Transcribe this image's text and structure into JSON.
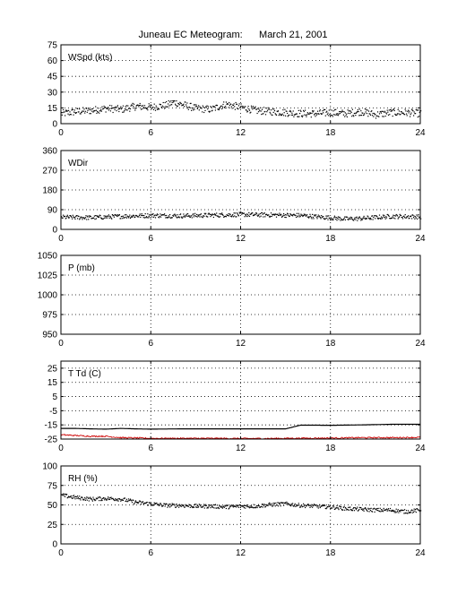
{
  "figure": {
    "title_left": "Juneau EC Meteogram:",
    "title_right": "March 21, 2001"
  },
  "chart_data": [
    {
      "type": "scatter",
      "label": "WSpd (kts)",
      "xlim": [
        0,
        24
      ],
      "ylim": [
        0,
        75
      ],
      "xticks": [
        0,
        6,
        12,
        18,
        24
      ],
      "yticks": [
        0,
        15,
        30,
        45,
        60,
        75
      ],
      "grid": true,
      "series": [
        {
          "color": "#000000",
          "x": [
            0,
            1,
            2,
            3,
            4,
            5,
            6,
            7,
            7.5,
            8,
            9,
            10,
            11,
            12,
            13,
            14,
            15,
            16,
            17,
            18,
            19,
            20,
            21,
            22,
            23,
            24
          ],
          "y": [
            10,
            12,
            13,
            15,
            14,
            17,
            16,
            18,
            21,
            19,
            15,
            14,
            19,
            16,
            13,
            12,
            11,
            10,
            10,
            11,
            10,
            12,
            9,
            11,
            11,
            10
          ]
        }
      ]
    },
    {
      "type": "scatter",
      "label": "WDir",
      "xlim": [
        0,
        24
      ],
      "ylim": [
        0,
        360
      ],
      "xticks": [
        0,
        6,
        12,
        18,
        24
      ],
      "yticks": [
        0,
        90,
        180,
        270,
        360
      ],
      "grid": true,
      "series": [
        {
          "color": "#000000",
          "x": [
            0,
            2,
            4,
            6,
            8,
            10,
            12,
            14,
            16,
            18,
            19,
            20,
            22,
            24
          ],
          "y": [
            58,
            56,
            62,
            66,
            64,
            67,
            70,
            68,
            66,
            55,
            50,
            52,
            62,
            60
          ]
        }
      ]
    },
    {
      "type": "line",
      "label": "P (mb)",
      "xlim": [
        0,
        24
      ],
      "ylim": [
        950,
        1050
      ],
      "xticks": [
        0,
        6,
        12,
        18,
        24
      ],
      "yticks": [
        950,
        975,
        1000,
        1025,
        1050
      ],
      "grid": true,
      "series": []
    },
    {
      "type": "line",
      "label": "T Td (C)",
      "xlim": [
        0,
        24
      ],
      "ylim": [
        -25,
        30
      ],
      "xticks": [
        0,
        6,
        12,
        18,
        24
      ],
      "yticks": [
        -25,
        -15,
        -5,
        5,
        15,
        25
      ],
      "grid": true,
      "series": [
        {
          "color": "#000000",
          "x": [
            0,
            1,
            2,
            3,
            4,
            5,
            6,
            8,
            10,
            12,
            14,
            15,
            15.5,
            16,
            17,
            18,
            20,
            22,
            24
          ],
          "y": [
            -17.5,
            -17.5,
            -17.8,
            -18,
            -17.5,
            -17.8,
            -18,
            -17.8,
            -17.8,
            -17.8,
            -17.8,
            -17.8,
            -16.5,
            -15.2,
            -15.2,
            -15.3,
            -15,
            -14.6,
            -14.6
          ]
        },
        {
          "color": "#cc0000",
          "x": [
            0,
            1,
            2,
            3,
            4,
            5,
            6,
            8,
            10,
            12,
            14,
            16,
            18,
            20,
            22,
            24
          ],
          "y": [
            -22,
            -22.5,
            -23,
            -23,
            -24,
            -24.2,
            -24.5,
            -24.5,
            -24.5,
            -24.6,
            -24.6,
            -24.4,
            -24.3,
            -24,
            -24,
            -23.8
          ]
        }
      ]
    },
    {
      "type": "scatter",
      "label": "RH (%)",
      "xlim": [
        0,
        24
      ],
      "ylim": [
        0,
        100
      ],
      "xticks": [
        0,
        6,
        12,
        18,
        24
      ],
      "yticks": [
        0,
        25,
        50,
        75,
        100
      ],
      "grid": true,
      "series": [
        {
          "color": "#000000",
          "x": [
            0,
            1,
            2,
            3,
            4,
            5,
            6,
            7,
            8,
            9,
            10,
            11,
            12,
            13,
            14,
            15,
            16,
            17,
            18,
            19,
            20,
            21,
            22,
            23,
            24
          ],
          "y": [
            63,
            60,
            58,
            59,
            58,
            54,
            52,
            50,
            50,
            49,
            49,
            48,
            49,
            49,
            51,
            52,
            50,
            49,
            48,
            46,
            45,
            44,
            44,
            42,
            44
          ]
        }
      ]
    }
  ]
}
